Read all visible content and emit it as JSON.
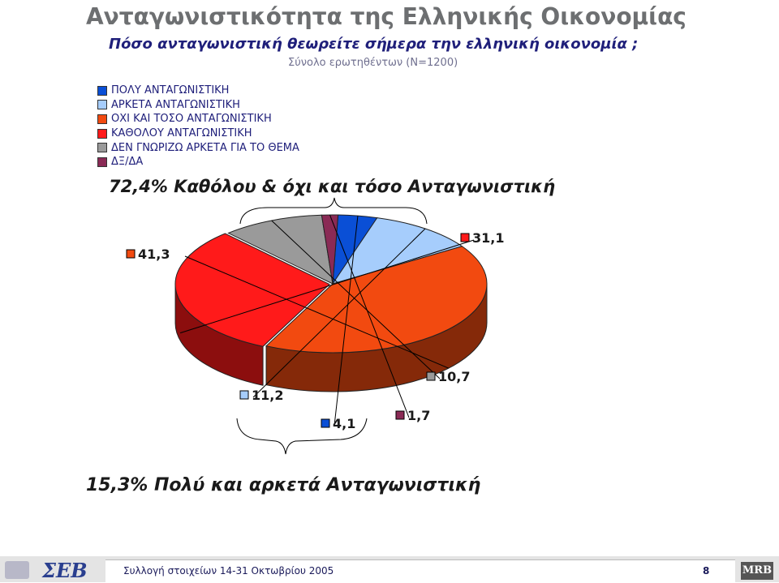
{
  "header": {
    "title": "Ανταγωνιστικότητα της Ελληνικής Οικονομίας",
    "question": "Πόσο ανταγωνιστική θεωρείτε σήμερα την ελληνική οικονομία ;",
    "base": "Σύνολο ερωτηθέντων (N=1200)"
  },
  "notes": {
    "top": "72,4% Καθόλου & όχι και τόσο Ανταγωνιστική",
    "bottom": "15,3% Πολύ και αρκετά Ανταγωνιστική"
  },
  "footer": {
    "collection": "Συλλογή στοιχείων  14-31  Οκτωβρίου 2005",
    "page": "8",
    "logo_left": "ΣΕΒ",
    "logo_right": "MRB"
  },
  "colors": {
    "very": "#0a4fd6",
    "fairly": "#a6cdfc",
    "not_so": "#f24a10",
    "not_at_all": "#ff1a1a",
    "dont_know": "#9a9a9a",
    "na": "#8a2a55"
  },
  "chart_data": {
    "type": "pie",
    "style": "3d-exploded",
    "legend_position": "top-left",
    "categories": [
      "ΠΟΛΥ ΑΝΤΑΓΩΝΙΣΤΙΚΗ",
      "ΑΡΚΕΤΑ ΑΝΤΑΓΩΝΙΣΤΙΚΗ",
      "ΟΧΙ ΚΑΙ ΤΟΣΟ ΑΝΤΑΓΩΝΙΣΤΙΚΗ",
      "ΚΑΘΟΛΟΥ ΑΝΤΑΓΩΝΙΣΤΙΚΗ",
      "ΔΕΝ ΓΝΩΡΙΖΩ ΑΡΚΕΤΑ ΓΙΑ ΤΟ ΘΕΜΑ",
      "ΔΞ/ΔΑ"
    ],
    "values": [
      4.1,
      11.2,
      41.3,
      31.1,
      10.7,
      1.7
    ],
    "data_labels": [
      "4,1",
      "11,2",
      "41,3",
      "31,1",
      "10,7",
      "1,7"
    ]
  }
}
